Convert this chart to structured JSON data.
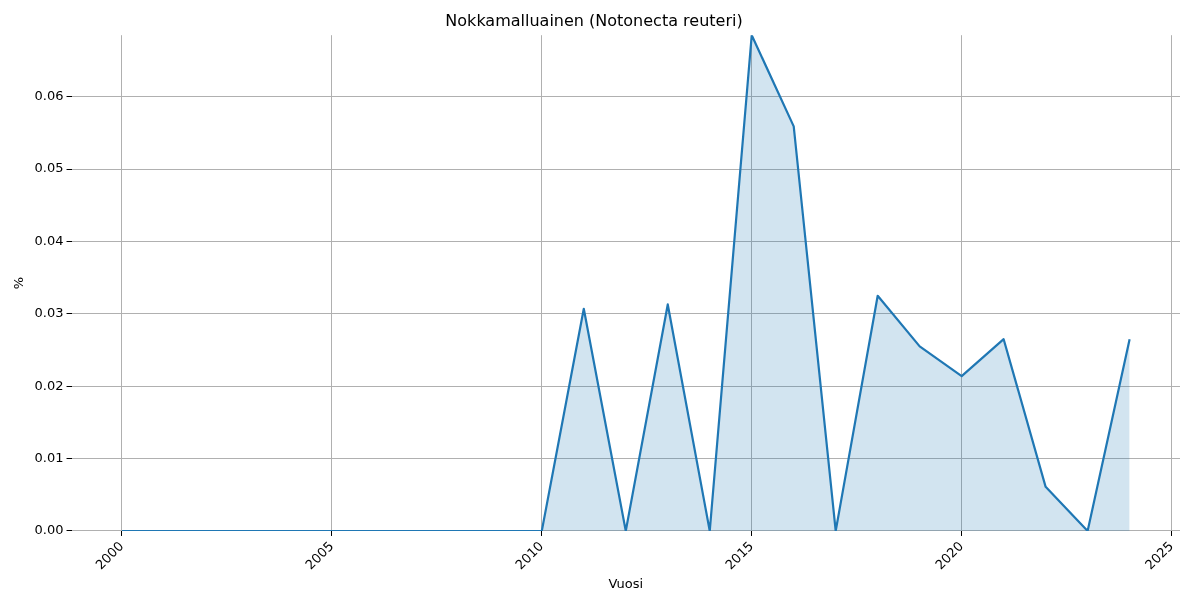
{
  "chart_data": {
    "type": "area",
    "title": "Nokkamalluainen (Notonecta reuteri)",
    "xlabel": "Vuosi",
    "ylabel": "%",
    "x": [
      2000,
      2001,
      2002,
      2003,
      2004,
      2005,
      2006,
      2007,
      2008,
      2009,
      2010,
      2011,
      2012,
      2013,
      2014,
      2015,
      2016,
      2017,
      2018,
      2019,
      2020,
      2021,
      2022,
      2023,
      2024
    ],
    "series": [
      {
        "color": "#1f77b4",
        "values": [
          0,
          0,
          0,
          0,
          0,
          0,
          0,
          0,
          0,
          0,
          0,
          0.0307,
          0,
          0.0313,
          0,
          0.0685,
          0.0559,
          0,
          0.0325,
          0.0255,
          0.0214,
          0.0265,
          0.0061,
          0,
          0.0265
        ]
      }
    ],
    "xlim": [
      1998.8,
      2025.2
    ],
    "xticks": [
      2000,
      2005,
      2010,
      2015,
      2020,
      2025
    ],
    "ylim": [
      0,
      0.0685
    ],
    "yticks": [
      {
        "value": 0,
        "label": "0.00"
      },
      {
        "value": 0.01,
        "label": "0.01"
      },
      {
        "value": 0.02,
        "label": "0.02"
      },
      {
        "value": 0.03,
        "label": "0.03"
      },
      {
        "value": 0.04,
        "label": "0.04"
      },
      {
        "value": 0.05,
        "label": "0.05"
      },
      {
        "value": 0.06,
        "label": "0.06"
      }
    ],
    "grid": true,
    "legend": false
  }
}
